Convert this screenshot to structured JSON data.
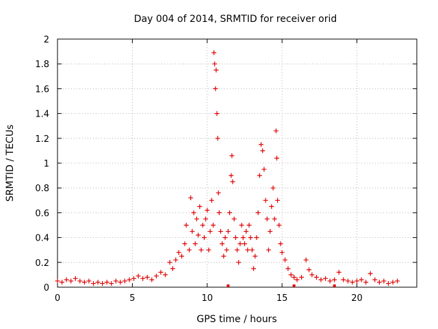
{
  "chart_data": {
    "type": "scatter",
    "title": "Day 004 of 2014, SRMTID for receiver orid",
    "xlabel": "GPS time / hours",
    "ylabel": "SRMTID / TECUs",
    "xlim": [
      0,
      24
    ],
    "ylim": [
      0,
      2
    ],
    "x_ticks": [
      0,
      5,
      10,
      15,
      20
    ],
    "x_tick_labels": [
      "0",
      "5",
      "10",
      "15",
      "20"
    ],
    "y_ticks": [
      0,
      0.2,
      0.4,
      0.6,
      0.8,
      1,
      1.2,
      1.4,
      1.6,
      1.8,
      2
    ],
    "y_tick_labels": [
      "0",
      "0.2",
      "0.4",
      "0.6",
      "0.8",
      "1",
      "1.2",
      "1.4",
      "1.6",
      "1.8",
      "2"
    ],
    "grid": true,
    "marker": "+",
    "color": "#e00000",
    "series": [
      {
        "name": "SRMTID",
        "points": [
          [
            0.0,
            0.05
          ],
          [
            0.3,
            0.04
          ],
          [
            0.6,
            0.06
          ],
          [
            0.9,
            0.05
          ],
          [
            1.2,
            0.07
          ],
          [
            1.5,
            0.05
          ],
          [
            1.8,
            0.04
          ],
          [
            2.1,
            0.05
          ],
          [
            2.4,
            0.03
          ],
          [
            2.7,
            0.04
          ],
          [
            3.0,
            0.03
          ],
          [
            3.3,
            0.04
          ],
          [
            3.6,
            0.03
          ],
          [
            3.9,
            0.05
          ],
          [
            4.2,
            0.04
          ],
          [
            4.5,
            0.05
          ],
          [
            4.8,
            0.06
          ],
          [
            5.1,
            0.07
          ],
          [
            5.4,
            0.09
          ],
          [
            5.7,
            0.07
          ],
          [
            6.0,
            0.08
          ],
          [
            6.3,
            0.06
          ],
          [
            6.6,
            0.09
          ],
          [
            6.9,
            0.12
          ],
          [
            7.2,
            0.1
          ],
          [
            7.5,
            0.2
          ],
          [
            7.7,
            0.15
          ],
          [
            7.9,
            0.22
          ],
          [
            8.1,
            0.28
          ],
          [
            8.3,
            0.25
          ],
          [
            8.5,
            0.35
          ],
          [
            8.6,
            0.5
          ],
          [
            8.8,
            0.3
          ],
          [
            8.9,
            0.72
          ],
          [
            9.0,
            0.45
          ],
          [
            9.1,
            0.6
          ],
          [
            9.2,
            0.35
          ],
          [
            9.3,
            0.55
          ],
          [
            9.4,
            0.42
          ],
          [
            9.5,
            0.65
          ],
          [
            9.6,
            0.3
          ],
          [
            9.7,
            0.5
          ],
          [
            9.8,
            0.4
          ],
          [
            9.9,
            0.55
          ],
          [
            10.0,
            0.62
          ],
          [
            10.1,
            0.3
          ],
          [
            10.2,
            0.45
          ],
          [
            10.3,
            0.7
          ],
          [
            10.4,
            0.5
          ],
          [
            10.45,
            1.89
          ],
          [
            10.5,
            1.8
          ],
          [
            10.55,
            1.6
          ],
          [
            10.6,
            1.75
          ],
          [
            10.65,
            1.4
          ],
          [
            10.7,
            1.2
          ],
          [
            10.75,
            0.76
          ],
          [
            10.8,
            0.6
          ],
          [
            10.9,
            0.45
          ],
          [
            11.0,
            0.35
          ],
          [
            11.1,
            0.25
          ],
          [
            11.2,
            0.4
          ],
          [
            11.3,
            0.3
          ],
          [
            11.4,
            0.45
          ],
          [
            11.5,
            0.6
          ],
          [
            11.6,
            0.9
          ],
          [
            11.65,
            1.06
          ],
          [
            11.7,
            0.85
          ],
          [
            11.8,
            0.55
          ],
          [
            11.9,
            0.4
          ],
          [
            12.0,
            0.3
          ],
          [
            12.1,
            0.2
          ],
          [
            12.2,
            0.35
          ],
          [
            12.3,
            0.5
          ],
          [
            12.4,
            0.4
          ],
          [
            12.5,
            0.35
          ],
          [
            12.6,
            0.45
          ],
          [
            12.7,
            0.3
          ],
          [
            12.8,
            0.5
          ],
          [
            12.9,
            0.4
          ],
          [
            13.0,
            0.3
          ],
          [
            13.1,
            0.15
          ],
          [
            13.2,
            0.25
          ],
          [
            13.3,
            0.4
          ],
          [
            13.4,
            0.6
          ],
          [
            13.5,
            0.9
          ],
          [
            13.6,
            1.15
          ],
          [
            13.7,
            1.1
          ],
          [
            13.8,
            0.95
          ],
          [
            13.9,
            0.7
          ],
          [
            14.0,
            0.55
          ],
          [
            14.1,
            0.3
          ],
          [
            14.2,
            0.45
          ],
          [
            14.3,
            0.65
          ],
          [
            14.4,
            0.8
          ],
          [
            14.5,
            0.55
          ],
          [
            14.6,
            1.26
          ],
          [
            14.65,
            1.04
          ],
          [
            14.7,
            0.7
          ],
          [
            14.8,
            0.5
          ],
          [
            14.9,
            0.35
          ],
          [
            15.0,
            0.28
          ],
          [
            15.2,
            0.22
          ],
          [
            15.4,
            0.15
          ],
          [
            15.6,
            0.1
          ],
          [
            15.8,
            0.08
          ],
          [
            16.0,
            0.06
          ],
          [
            16.3,
            0.08
          ],
          [
            16.6,
            0.22
          ],
          [
            16.8,
            0.14
          ],
          [
            17.0,
            0.1
          ],
          [
            17.3,
            0.08
          ],
          [
            17.6,
            0.06
          ],
          [
            17.9,
            0.07
          ],
          [
            18.2,
            0.05
          ],
          [
            18.5,
            0.06
          ],
          [
            18.8,
            0.12
          ],
          [
            19.1,
            0.06
          ],
          [
            19.4,
            0.05
          ],
          [
            19.7,
            0.04
          ],
          [
            20.0,
            0.05
          ],
          [
            20.3,
            0.06
          ],
          [
            20.6,
            0.04
          ],
          [
            20.9,
            0.11
          ],
          [
            21.2,
            0.06
          ],
          [
            21.5,
            0.04
          ],
          [
            21.8,
            0.05
          ],
          [
            22.1,
            0.03
          ],
          [
            22.4,
            0.04
          ],
          [
            22.7,
            0.05
          ]
        ]
      }
    ],
    "zero_markers_x": [
      11.4,
      15.8,
      18.5
    ]
  }
}
